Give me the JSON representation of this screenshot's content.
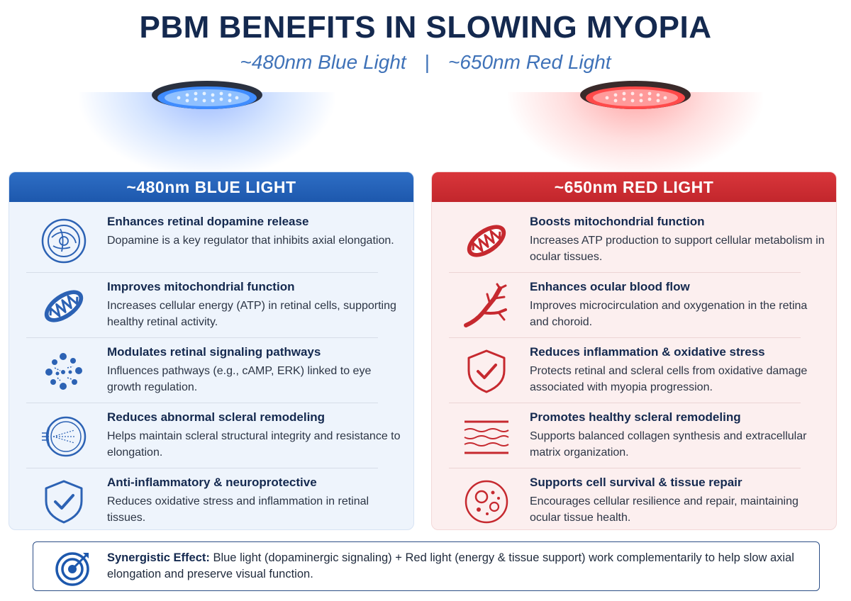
{
  "title": "PBM BENEFITS IN SLOWING MYOPIA",
  "subtitle": {
    "left": "~480nm Blue Light",
    "separator": "|",
    "right": "~650nm Red Light"
  },
  "colors": {
    "blue": "#1d58ad",
    "red": "#c2262c",
    "navy": "#14294f"
  },
  "blue_panel": {
    "header": "~480nm BLUE LIGHT",
    "items": [
      {
        "icon": "retina-icon",
        "title": "Enhances retinal dopamine release",
        "desc": "Dopamine is a key regulator that inhibits axial elongation."
      },
      {
        "icon": "mitochondria-icon",
        "title": "Improves mitochondrial function",
        "desc": "Increases cellular energy (ATP) in retinal cells, supporting healthy retinal activity."
      },
      {
        "icon": "signaling-dots-icon",
        "title": "Modulates retinal signaling pathways",
        "desc": "Influences pathways (e.g., cAMP, ERK) linked to eye growth regulation."
      },
      {
        "icon": "eye-cross-section-icon",
        "title": "Reduces abnormal scleral remodeling",
        "desc": "Helps maintain scleral structural integrity and resistance to elongation."
      },
      {
        "icon": "shield-check-icon",
        "title": "Anti-inflammatory & neuroprotective",
        "desc": "Reduces oxidative stress and inflammation in retinal tissues."
      }
    ]
  },
  "red_panel": {
    "header": "~650nm RED LIGHT",
    "items": [
      {
        "icon": "mitochondria-icon",
        "title": "Boosts mitochondrial function",
        "desc": "Increases ATP production to support cellular metabolism in ocular tissues."
      },
      {
        "icon": "blood-vessel-icon",
        "title": "Enhances ocular blood flow",
        "desc": "Improves microcirculation and oxygenation in the retina and choroid."
      },
      {
        "icon": "shield-check-icon",
        "title": "Reduces inflammation & oxidative stress",
        "desc": "Protects retinal and scleral cells from oxidative damage associated with myopia progression."
      },
      {
        "icon": "collagen-fibers-icon",
        "title": "Promotes healthy scleral remodeling",
        "desc": "Supports balanced collagen synthesis and extracellular matrix organization."
      },
      {
        "icon": "cell-icon",
        "title": "Supports cell survival & tissue repair",
        "desc": "Encourages cellular resilience and repair, maintaining ocular tissue health."
      }
    ]
  },
  "footer": {
    "icon": "target-icon",
    "label": "Synergistic Effect:",
    "text": " Blue light (dopaminergic signaling) + Red light (energy & tissue support) work complementarily to help slow axial elongation and preserve visual function."
  }
}
